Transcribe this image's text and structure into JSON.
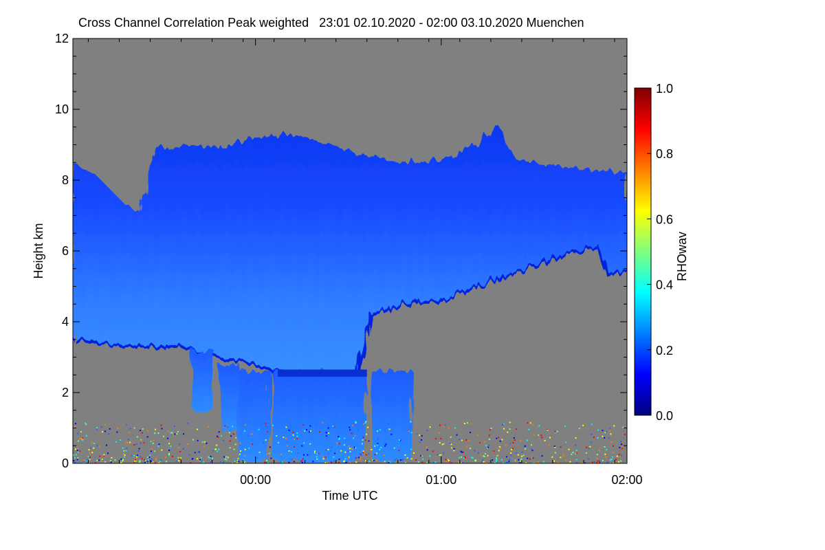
{
  "chart_data": {
    "type": "heatmap",
    "title": "Cross Channel Correlation Peak weighted   23:01 02.10.2020 - 02:00 03.10.2020 Muenchen",
    "xlabel": "Time UTC",
    "ylabel": "Height km",
    "x_range_hours": [
      -0.983,
      2.0
    ],
    "x_ticks": [
      {
        "value": 0,
        "label": "00:00"
      },
      {
        "value": 1,
        "label": "01:00"
      },
      {
        "value": 2,
        "label": "02:00"
      }
    ],
    "ylim": [
      0,
      12
    ],
    "y_ticks": [
      {
        "value": 0,
        "label": "0"
      },
      {
        "value": 2,
        "label": "2"
      },
      {
        "value": 4,
        "label": "4"
      },
      {
        "value": 6,
        "label": "6"
      },
      {
        "value": 8,
        "label": "8"
      },
      {
        "value": 10,
        "label": "10"
      },
      {
        "value": 12,
        "label": "12"
      }
    ],
    "colorbar": {
      "label": "RHOwav",
      "range": [
        0.0,
        1.0
      ],
      "ticks": [
        {
          "value": 0.0,
          "label": "0.0"
        },
        {
          "value": 0.2,
          "label": "0.2"
        },
        {
          "value": 0.4,
          "label": "0.4"
        },
        {
          "value": 0.6,
          "label": "0.6"
        },
        {
          "value": 0.8,
          "label": "0.8"
        },
        {
          "value": 1.0,
          "label": "1.0"
        }
      ],
      "colormap": [
        "#00007f",
        "#0000ff",
        "#007fff",
        "#00ffff",
        "#7fff7f",
        "#ffff00",
        "#ff7f00",
        "#ff0000",
        "#7f0000"
      ]
    },
    "colors": {
      "no_data": "#808080",
      "cloud_core": "#1a4dff",
      "cloud_edge": "#0022dd",
      "cloud_light": "#3c8cff",
      "low_band": "#2266ee"
    },
    "cloud_top_km": [
      [
        -0.983,
        8.5
      ],
      [
        -0.85,
        8.1
      ],
      [
        -0.7,
        7.3
      ],
      [
        -0.62,
        7.1
      ],
      [
        -0.55,
        8.9
      ],
      [
        -0.4,
        9.0
      ],
      [
        -0.2,
        8.9
      ],
      [
        0.0,
        9.2
      ],
      [
        0.2,
        9.3
      ],
      [
        0.4,
        9.0
      ],
      [
        0.6,
        8.7
      ],
      [
        0.8,
        8.5
      ],
      [
        1.0,
        8.6
      ],
      [
        1.2,
        9.0
      ],
      [
        1.3,
        9.6
      ],
      [
        1.4,
        8.6
      ],
      [
        1.6,
        8.4
      ],
      [
        1.8,
        8.3
      ],
      [
        2.0,
        8.2
      ]
    ],
    "cloud_base_km": [
      [
        -0.983,
        3.5
      ],
      [
        -0.7,
        3.3
      ],
      [
        -0.4,
        3.3
      ],
      [
        -0.2,
        3.0
      ],
      [
        0.0,
        2.8
      ],
      [
        0.1,
        2.6
      ],
      [
        0.35,
        2.5
      ],
      [
        0.55,
        2.5
      ],
      [
        0.62,
        4.2
      ],
      [
        0.8,
        4.5
      ],
      [
        1.0,
        4.6
      ],
      [
        1.2,
        5.0
      ],
      [
        1.5,
        5.6
      ],
      [
        1.7,
        5.9
      ],
      [
        1.85,
        6.1
      ],
      [
        1.9,
        5.3
      ],
      [
        2.0,
        5.5
      ]
    ],
    "precip_shafts": [
      {
        "x_start": -0.35,
        "x_end": -0.22,
        "top_km": 3.2,
        "bottom_km": 1.5
      },
      {
        "x_start": -0.2,
        "x_end": -0.08,
        "top_km": 2.8,
        "bottom_km": 0.9
      },
      {
        "x_start": -0.1,
        "x_end": 0.08,
        "top_km": 2.6,
        "bottom_km": 0.1
      },
      {
        "x_start": 0.08,
        "x_end": 0.6,
        "top_km": 2.6,
        "bottom_km": 0.1
      },
      {
        "x_start": 0.62,
        "x_end": 0.85,
        "top_km": 2.6,
        "bottom_km": 0.1
      }
    ]
  }
}
